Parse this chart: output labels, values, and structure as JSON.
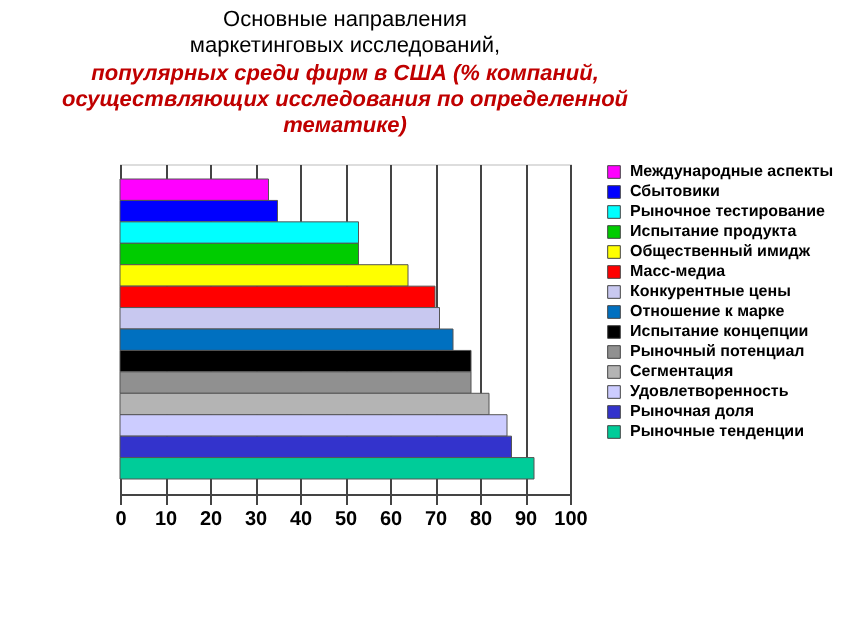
{
  "chart_data": {
    "type": "bar",
    "orientation": "horizontal",
    "title": [
      "Основные направления",
      "маркетинговых исследований,"
    ],
    "subtitle": [
      "популярных среди фирм в США  (% компаний,",
      "осуществляющих исследования по определенной",
      "тематике)"
    ],
    "categories": [
      null
    ],
    "series": [
      {
        "name": "Международные аспекты",
        "color": "#ff00ff",
        "values": [
          33
        ]
      },
      {
        "name": "Сбытовики",
        "color": "#0000ff",
        "values": [
          35
        ]
      },
      {
        "name": "Рыночное тестирование",
        "color": "#00ffff",
        "values": [
          53
        ]
      },
      {
        "name": "Испытание продукта",
        "color": "#00cc00",
        "values": [
          53
        ]
      },
      {
        "name": "Общественный имидж",
        "color": "#ffff00",
        "values": [
          64
        ]
      },
      {
        "name": "Масс-медиа",
        "color": "#ff0000",
        "values": [
          70
        ]
      },
      {
        "name": "Конкурентные цены",
        "color": "#c8c8f0",
        "values": [
          71
        ]
      },
      {
        "name": "Отношение к марке",
        "color": "#0070c0",
        "values": [
          74
        ]
      },
      {
        "name": "Испытание концепции",
        "color": "#000000",
        "values": [
          78
        ]
      },
      {
        "name": "Рыночный потенциал",
        "color": "#909090",
        "values": [
          78
        ]
      },
      {
        "name": "Сегментация",
        "color": "#b4b4b4",
        "values": [
          82
        ]
      },
      {
        "name": "Удовлетворенность",
        "color": "#ccccff",
        "values": [
          86
        ]
      },
      {
        "name": "Рыночная доля",
        "color": "#3333cc",
        "values": [
          87
        ]
      },
      {
        "name": "Рыночные тенденции",
        "color": "#00cc99",
        "values": [
          92
        ]
      }
    ],
    "xlim": [
      0,
      100
    ],
    "xticks": [
      0,
      10,
      20,
      30,
      40,
      50,
      60,
      70,
      80,
      90,
      100
    ],
    "grid": "x",
    "legend": "right",
    "tick_labels": "x"
  }
}
